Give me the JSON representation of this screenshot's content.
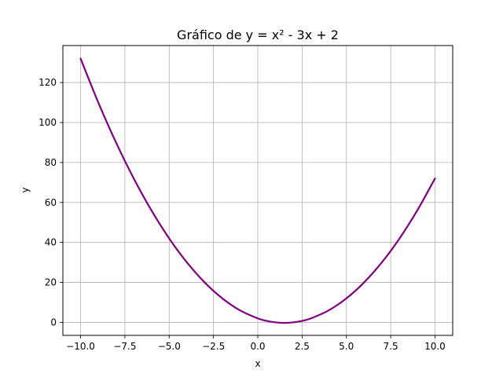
{
  "chart_data": {
    "type": "line",
    "title": "Gráfico de y = x² - 3x + 2",
    "xlabel": "x",
    "ylabel": "y",
    "xlim": [
      -11.0,
      11.0
    ],
    "ylim": [
      -6.5,
      138.5
    ],
    "x_ticks": [
      -10.0,
      -7.5,
      -5.0,
      -2.5,
      0.0,
      2.5,
      5.0,
      7.5,
      10.0
    ],
    "x_tick_labels": [
      "−10.0",
      "−7.5",
      "−5.0",
      "−2.5",
      "0.0",
      "2.5",
      "5.0",
      "7.5",
      "10.0"
    ],
    "y_ticks": [
      0,
      20,
      40,
      60,
      80,
      100,
      120
    ],
    "y_tick_labels": [
      "0",
      "20",
      "40",
      "60",
      "80",
      "100",
      "120"
    ],
    "grid": true,
    "series": [
      {
        "color": "#800080",
        "x": [
          -10.0,
          -9.0,
          -8.0,
          -7.0,
          -6.0,
          -5.0,
          -4.0,
          -3.0,
          -2.0,
          -1.0,
          0.0,
          0.5,
          1.0,
          1.5,
          2.0,
          2.5,
          3.0,
          4.0,
          5.0,
          6.0,
          7.0,
          8.0,
          9.0,
          10.0
        ],
        "y": [
          132.0,
          110.0,
          90.0,
          72.0,
          56.0,
          42.0,
          30.0,
          20.0,
          12.0,
          6.0,
          2.0,
          0.75,
          0.0,
          -0.25,
          0.0,
          0.75,
          2.0,
          6.0,
          12.0,
          20.0,
          30.0,
          42.0,
          56.0,
          72.0
        ]
      }
    ]
  }
}
